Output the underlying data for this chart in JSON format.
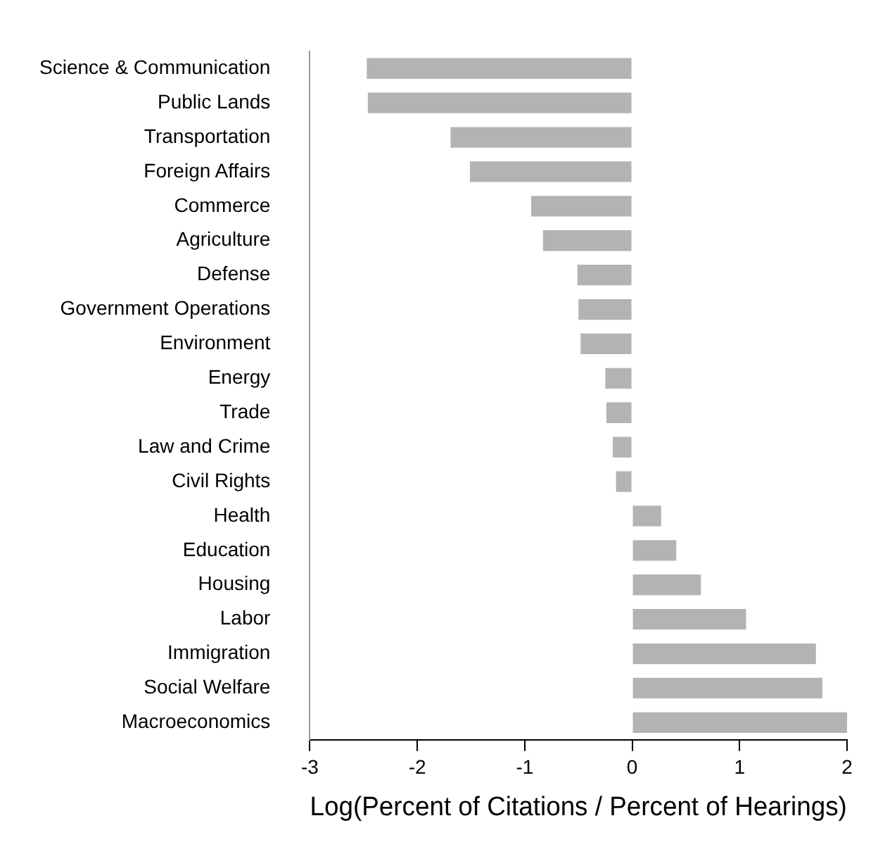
{
  "chart_data": {
    "type": "bar",
    "orientation": "horizontal",
    "xlabel": "Log(Percent of Citations / Percent of Hearings)",
    "categories": [
      "Science & Communication",
      "Public Lands",
      "Transportation",
      "Foreign Affairs",
      "Commerce",
      "Agriculture",
      "Defense",
      "Government Operations",
      "Environment",
      "Energy",
      "Trade",
      "Law and Crime",
      "Civil Rights",
      "Health",
      "Education",
      "Housing",
      "Labor",
      "Immigration",
      "Social Welfare",
      "Macroeconomics"
    ],
    "values": [
      -2.47,
      -2.46,
      -1.69,
      -1.51,
      -0.94,
      -0.83,
      -0.51,
      -0.5,
      -0.48,
      -0.25,
      -0.24,
      -0.18,
      -0.15,
      0.27,
      0.41,
      0.64,
      1.06,
      1.71,
      1.77,
      2.0
    ],
    "color": "#b3b3b3",
    "xlim": [
      -3,
      2
    ],
    "xticks": [
      -3,
      -2,
      -1,
      0,
      1,
      2
    ],
    "grid": false,
    "legend": false
  }
}
